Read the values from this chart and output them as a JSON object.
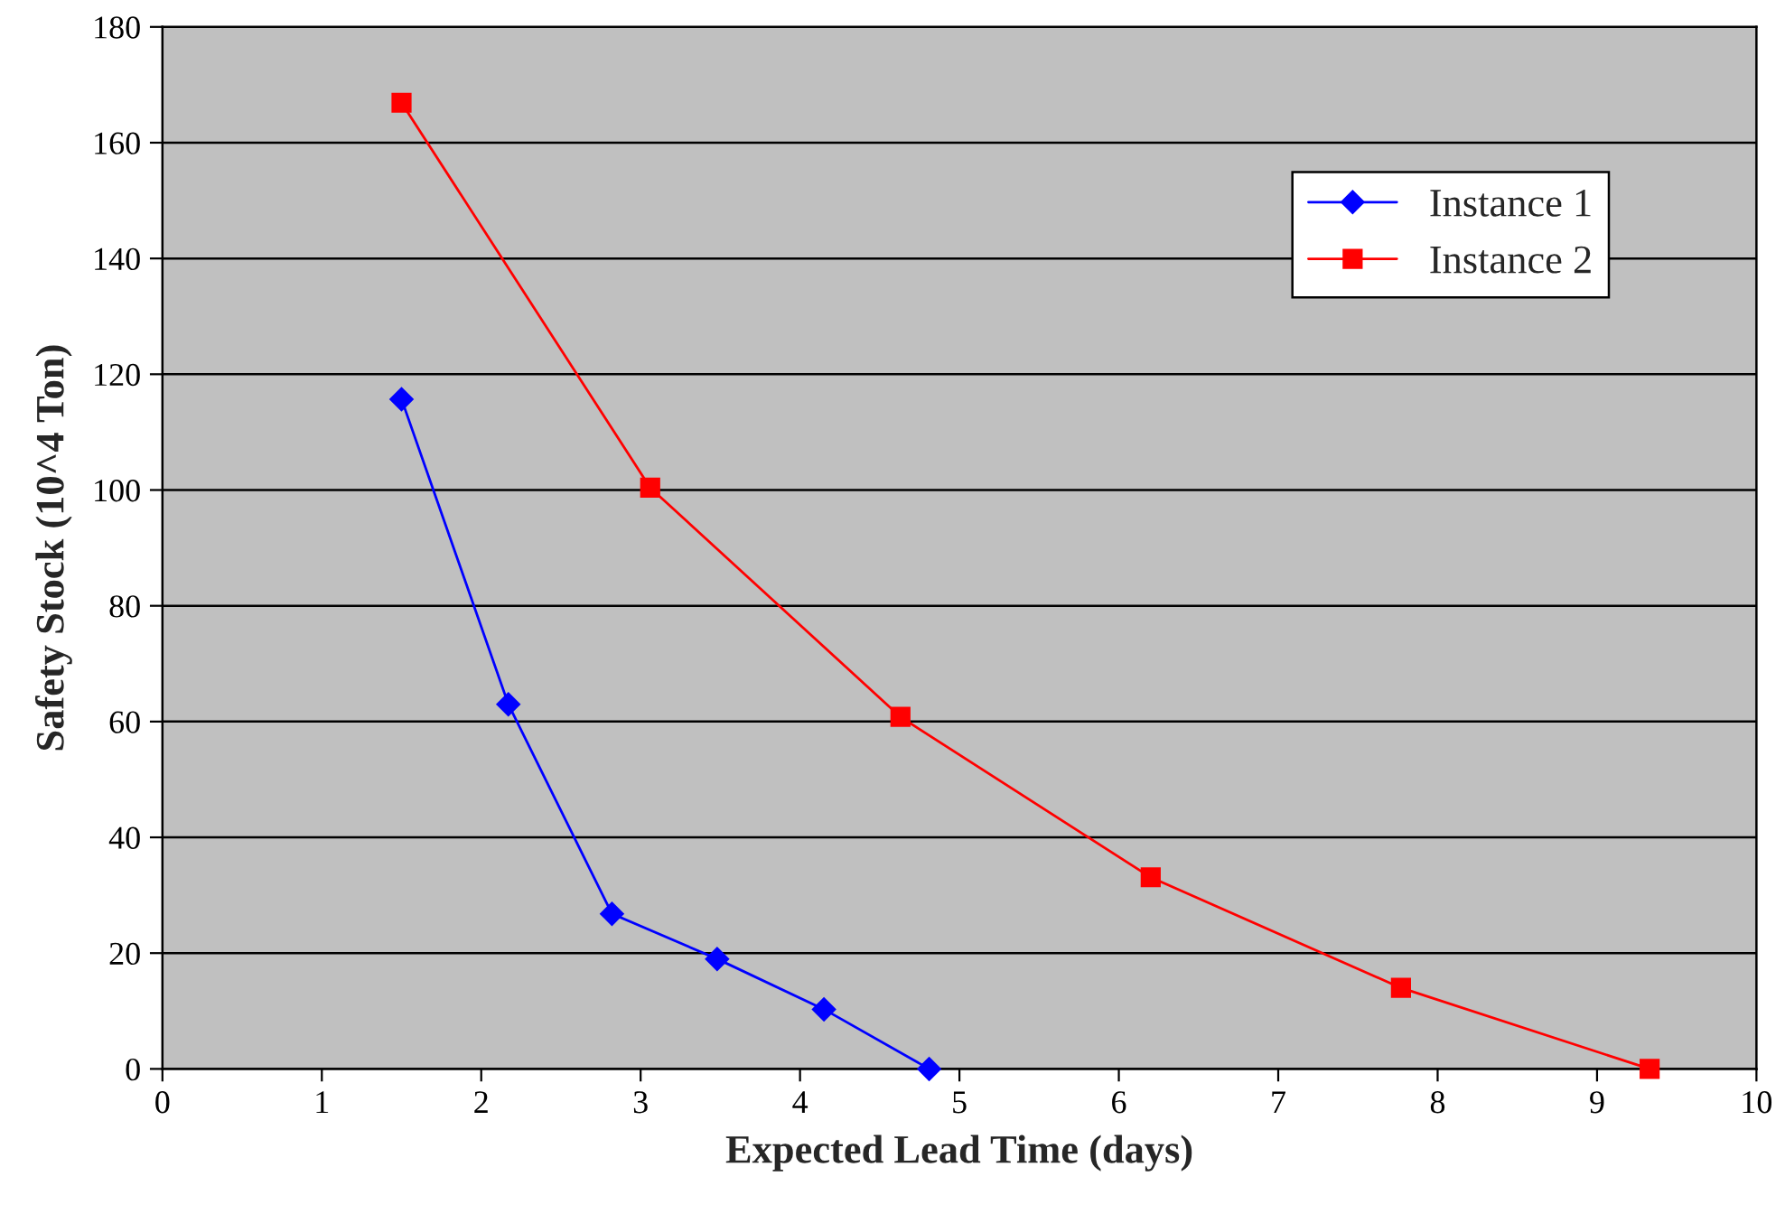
{
  "chart_data": {
    "type": "line",
    "xlabel": "Expected Lead Time (days)",
    "ylabel": "Safety Stock (10^4 Ton)",
    "series": [
      {
        "name": "Instance 1",
        "color": "#0000ff",
        "marker": "diamond",
        "x": [
          1.5,
          2.17,
          2.82,
          3.48,
          4.15,
          4.81
        ],
        "values": [
          115.7,
          63.0,
          26.8,
          19.0,
          10.3,
          0
        ]
      },
      {
        "name": "Instance 2",
        "color": "#ff0000",
        "marker": "square",
        "x": [
          1.5,
          3.06,
          4.63,
          6.2,
          7.77,
          9.33
        ],
        "values": [
          166.9,
          100.4,
          60.8,
          33.1,
          14.0,
          0
        ]
      }
    ],
    "xlim": [
      0,
      10
    ],
    "xticks": [
      0,
      1,
      2,
      3,
      4,
      5,
      6,
      7,
      8,
      9,
      10
    ],
    "ylim": [
      0,
      180
    ],
    "yticks": [
      0,
      20,
      40,
      60,
      80,
      100,
      120,
      140,
      160,
      180
    ],
    "grid": "y",
    "legend": "top right",
    "line_style": "solid"
  }
}
